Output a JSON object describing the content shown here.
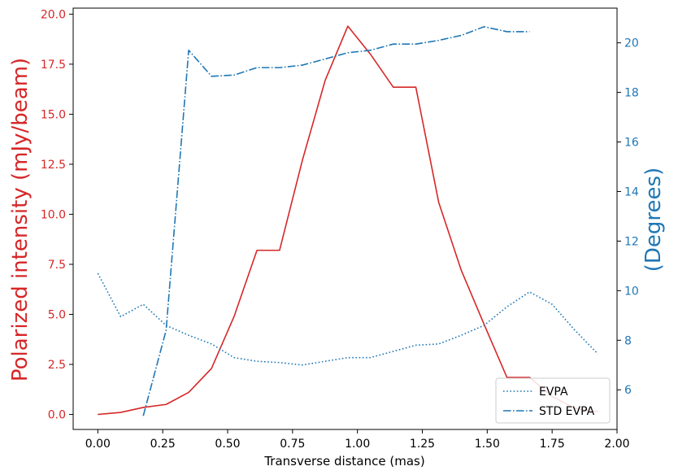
{
  "chart_data": {
    "type": "line",
    "xlabel": "Transverse distance (mas)",
    "ylabel_left": "Polarized intensity (mJy/beam)",
    "ylabel_right": "(Degrees)",
    "xlim": [
      -0.095,
      2.0
    ],
    "ylim_left": [
      -0.75,
      20.3
    ],
    "ylim_right": [
      4.4,
      21.4
    ],
    "x_ticks": [
      0.0,
      0.25,
      0.5,
      0.75,
      1.0,
      1.25,
      1.5,
      1.75,
      2.0
    ],
    "x_tick_labels": [
      "0.00",
      "0.25",
      "0.50",
      "0.75",
      "1.00",
      "1.25",
      "1.50",
      "1.75",
      "2.00"
    ],
    "y_left_ticks": [
      0.0,
      2.5,
      5.0,
      7.5,
      10.0,
      12.5,
      15.0,
      17.5,
      20.0
    ],
    "y_left_tick_labels": [
      "0.0",
      "2.5",
      "5.0",
      "7.5",
      "10.0",
      "12.5",
      "15.0",
      "17.5",
      "20.0"
    ],
    "y_right_ticks": [
      6,
      8,
      10,
      12,
      14,
      16,
      18,
      20
    ],
    "y_right_tick_labels": [
      "6",
      "8",
      "10",
      "12",
      "14",
      "16",
      "18",
      "20"
    ],
    "grid": false,
    "legend_position": "bottom-right",
    "colors": {
      "left_axis": "#d62728",
      "right_axis": "#1f77b4"
    },
    "series": [
      {
        "axis": "left",
        "style": "solid",
        "color": "#d62728",
        "x": [
          0.0,
          0.088,
          0.175,
          0.263,
          0.35,
          0.438,
          0.525,
          0.613,
          0.7,
          0.788,
          0.876,
          0.963,
          1.05,
          1.138,
          1.225,
          1.313,
          1.4,
          1.488,
          1.576,
          1.663,
          1.75,
          1.838,
          1.926
        ],
        "values": [
          0.0,
          0.1,
          0.35,
          0.5,
          1.1,
          2.3,
          4.9,
          8.2,
          8.2,
          12.7,
          16.7,
          19.4,
          18.0,
          16.35,
          16.35,
          10.6,
          7.2,
          4.5,
          1.85,
          1.85,
          0.9,
          0.3,
          0.15
        ]
      },
      {
        "axis": "right",
        "style": "dotted",
        "name": "EVPA",
        "color": "#1f77b4",
        "x": [
          0.0,
          0.088,
          0.175,
          0.263,
          0.35,
          0.438,
          0.525,
          0.613,
          0.7,
          0.788,
          0.876,
          0.963,
          1.05,
          1.138,
          1.225,
          1.313,
          1.4,
          1.488,
          1.576,
          1.663,
          1.75,
          1.838,
          1.926
        ],
        "values": [
          10.7,
          8.95,
          9.45,
          8.6,
          8.2,
          7.85,
          7.3,
          7.15,
          7.1,
          7.0,
          7.15,
          7.3,
          7.3,
          7.55,
          7.8,
          7.85,
          8.2,
          8.6,
          9.35,
          9.95,
          9.45,
          8.4,
          7.45
        ]
      },
      {
        "axis": "right",
        "style": "dashdot",
        "name": "STD EVPA",
        "color": "#1f77b4",
        "x": [
          0.175,
          0.263,
          0.35,
          0.438,
          0.525,
          0.613,
          0.7,
          0.788,
          0.876,
          0.963,
          1.05,
          1.138,
          1.225,
          1.313,
          1.4,
          1.488,
          1.576,
          1.663
        ],
        "values": [
          4.95,
          8.4,
          19.7,
          18.65,
          18.7,
          19.0,
          19.0,
          19.1,
          19.35,
          19.6,
          19.7,
          19.95,
          19.95,
          20.1,
          20.3,
          20.65,
          20.45,
          20.45
        ]
      }
    ]
  }
}
